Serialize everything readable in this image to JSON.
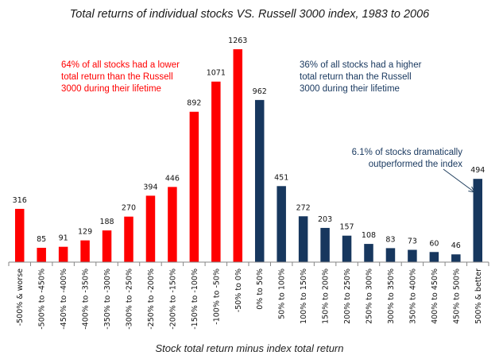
{
  "chart_data": {
    "type": "bar",
    "title": "Total returns of individual stocks VS. Russell 3000 index, 1983 to 2006",
    "xlabel": "Stock total return minus index total return",
    "ylabel": "",
    "ylim": [
      0,
      1300
    ],
    "grid": false,
    "legend": "none",
    "categories": [
      "-500% & worse",
      "-500% to -450%",
      "-450% to -400%",
      "-400% to -350%",
      "-350% to -300%",
      "-300% to -250%",
      "-250% to -200%",
      "-200% to -150%",
      "-150% to -100%",
      "-100% to -50%",
      "-50% to 0%",
      "0% to 50%",
      "50% to 100%",
      "100% to 150%",
      "150% to 200%",
      "200% to 250%",
      "250% to 300%",
      "300% to 350%",
      "350% to 400%",
      "400% to 450%",
      "450% to 500%",
      "500% & better"
    ],
    "values": [
      316,
      85,
      91,
      129,
      188,
      270,
      394,
      446,
      892,
      1071,
      1263,
      962,
      451,
      272,
      203,
      157,
      108,
      83,
      73,
      60,
      46,
      494
    ],
    "bar_groups": [
      {
        "name": "underperformed",
        "from_index": 0,
        "to_index": 10,
        "color": "#FF0000"
      },
      {
        "name": "outperformed",
        "from_index": 11,
        "to_index": 21,
        "color": "#17375E"
      }
    ],
    "annotations": [
      {
        "id": "lower",
        "lines": [
          "64% of all stocks had a lower",
          "total return  than the Russell",
          "3000 during  their lifetime"
        ],
        "color": "#FF0000"
      },
      {
        "id": "higher",
        "lines": [
          "36% of all stocks had a higher",
          "total return  than the Russell",
          "3000 during  their lifetime"
        ],
        "color": "#17375E"
      },
      {
        "id": "dramatic",
        "lines": [
          "6.1% of stocks dramatically",
          "outperformed the  index"
        ],
        "color": "#17375E",
        "points_to_category": "500% & better"
      }
    ]
  }
}
